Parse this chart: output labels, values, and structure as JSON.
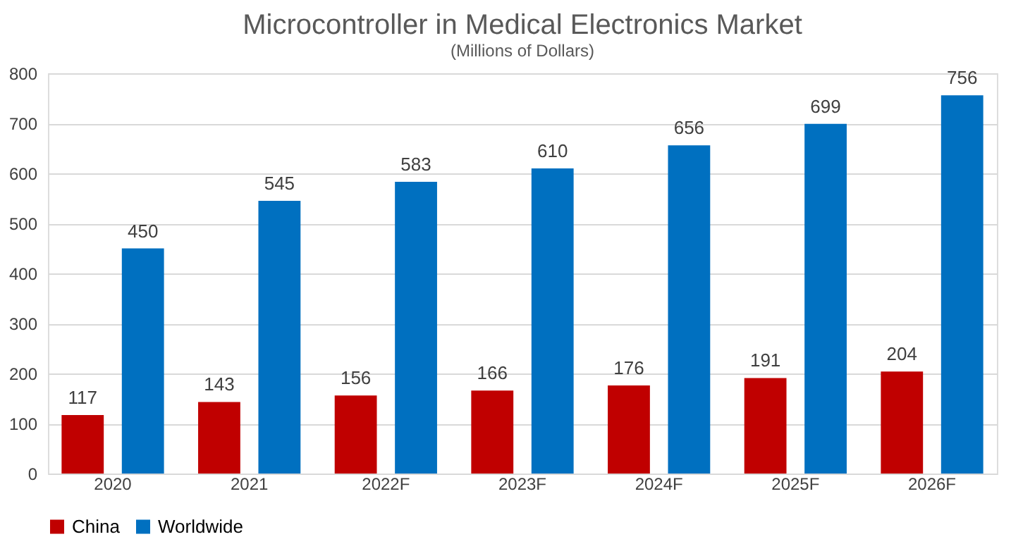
{
  "chart_data": {
    "type": "bar",
    "title": "Microcontroller in Medical Electronics Market",
    "subtitle": "(Millions of Dollars)",
    "categories": [
      "2020",
      "2021",
      "2022F",
      "2023F",
      "2024F",
      "2025F",
      "2026F"
    ],
    "series": [
      {
        "name": "China",
        "color": "#c00000",
        "values": [
          117,
          143,
          156,
          166,
          176,
          191,
          204
        ]
      },
      {
        "name": "Worldwide",
        "color": "#0070c0",
        "values": [
          450,
          545,
          583,
          610,
          656,
          699,
          756
        ]
      }
    ],
    "ylim": [
      0,
      800
    ],
    "yticks": [
      0,
      100,
      200,
      300,
      400,
      500,
      600,
      700,
      800
    ],
    "grid": "y",
    "legend": "bottom",
    "data_labels": true
  }
}
